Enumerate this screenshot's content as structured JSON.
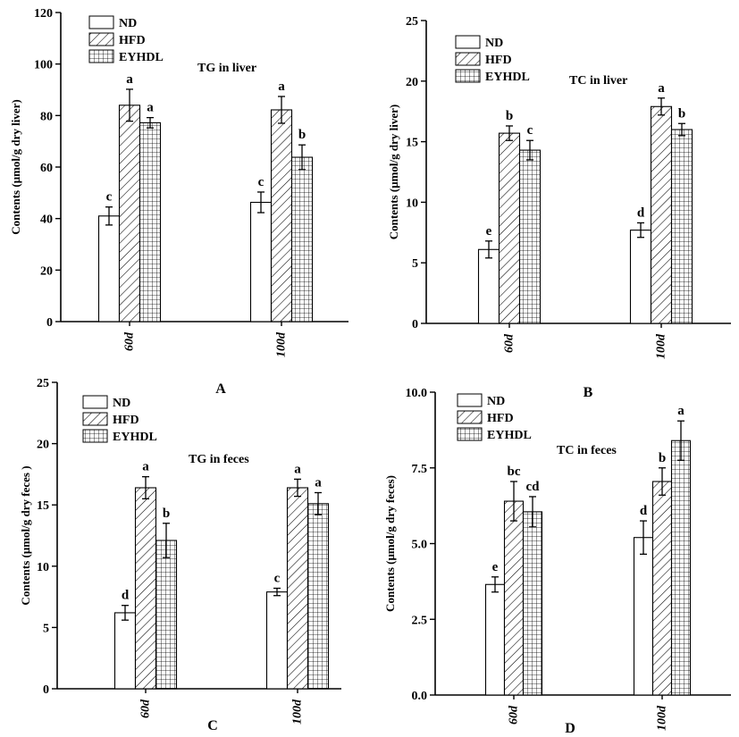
{
  "legend_labels": [
    "ND",
    "HFD",
    "EYHDL"
  ],
  "colors": {
    "axis": "#000000",
    "bar_fill": "#ffffff"
  },
  "chart_data": [
    {
      "panel": "A",
      "type": "bar",
      "title": "TG in liver",
      "xlabel": "",
      "ylabel": "Contents (μmol/g dry liver)",
      "categories": [
        "60d",
        "100d"
      ],
      "ylim": [
        0,
        120
      ],
      "yticks": [
        "0",
        "20",
        "40",
        "60",
        "80",
        "100",
        "120"
      ],
      "ytick_values": [
        0,
        20,
        40,
        60,
        80,
        100,
        120
      ],
      "grid": false,
      "legend": "top-left",
      "series": [
        {
          "name": "ND",
          "values": [
            41,
            46.3
          ],
          "errors": [
            3.5,
            4.0
          ],
          "letters": [
            "c",
            "c"
          ]
        },
        {
          "name": "HFD",
          "values": [
            84,
            82.2
          ],
          "errors": [
            6.2,
            5.2
          ],
          "letters": [
            "a",
            "a"
          ]
        },
        {
          "name": "EYHDL",
          "values": [
            77.2,
            63.8
          ],
          "errors": [
            2.0,
            4.8
          ],
          "letters": [
            "a",
            "b"
          ]
        }
      ]
    },
    {
      "panel": "B",
      "type": "bar",
      "title": "TC in liver",
      "xlabel": "",
      "ylabel": "Contents (μmol/g dry liver)",
      "categories": [
        "60d",
        "100d"
      ],
      "ylim": [
        0,
        25
      ],
      "yticks": [
        "0",
        "5",
        "10",
        "15",
        "20",
        "25"
      ],
      "ytick_values": [
        0,
        5,
        10,
        15,
        20,
        25
      ],
      "grid": false,
      "legend": "top-left",
      "series": [
        {
          "name": "ND",
          "values": [
            6.1,
            7.7
          ],
          "errors": [
            0.7,
            0.6
          ],
          "letters": [
            "e",
            "d"
          ]
        },
        {
          "name": "HFD",
          "values": [
            15.7,
            17.9
          ],
          "errors": [
            0.6,
            0.7
          ],
          "letters": [
            "b",
            "a"
          ]
        },
        {
          "name": "EYHDL",
          "values": [
            14.3,
            16
          ],
          "errors": [
            0.8,
            0.5
          ],
          "letters": [
            "c",
            "b"
          ]
        }
      ]
    },
    {
      "panel": "C",
      "type": "bar",
      "title": "TG in feces",
      "xlabel": "",
      "ylabel": "Contents (μmol/g dry feces )",
      "categories": [
        "60d",
        "100d"
      ],
      "ylim": [
        0,
        25
      ],
      "yticks": [
        "0",
        "5",
        "10",
        "15",
        "20",
        "25"
      ],
      "ytick_values": [
        0,
        5,
        10,
        15,
        20,
        25
      ],
      "grid": false,
      "legend": "top-left",
      "series": [
        {
          "name": "ND",
          "values": [
            6.2,
            7.9
          ],
          "errors": [
            0.6,
            0.3
          ],
          "letters": [
            "d",
            "c"
          ]
        },
        {
          "name": "HFD",
          "values": [
            16.4,
            16.4
          ],
          "errors": [
            0.9,
            0.7
          ],
          "letters": [
            "a",
            "a"
          ]
        },
        {
          "name": "EYHDL",
          "values": [
            12.1,
            15.1
          ],
          "errors": [
            1.4,
            0.9
          ],
          "letters": [
            "b",
            "a"
          ]
        }
      ]
    },
    {
      "panel": "D",
      "type": "bar",
      "title": "TC in feces",
      "xlabel": "",
      "ylabel": "Contents (μmol/g dry feces)",
      "categories": [
        "60d",
        "100d"
      ],
      "ylim": [
        0,
        10
      ],
      "yticks": [
        "0.0",
        "2.5",
        "5.0",
        "7.5",
        "10.0"
      ],
      "ytick_values": [
        0,
        2.5,
        5,
        7.5,
        10
      ],
      "grid": false,
      "legend": "top-left",
      "series": [
        {
          "name": "ND",
          "values": [
            3.65,
            5.2
          ],
          "errors": [
            0.25,
            0.55
          ],
          "letters": [
            "e",
            "d"
          ]
        },
        {
          "name": "HFD",
          "values": [
            6.4,
            7.05
          ],
          "errors": [
            0.65,
            0.45
          ],
          "letters": [
            "bc",
            "b"
          ]
        },
        {
          "name": "EYHDL",
          "values": [
            6.05,
            8.4
          ],
          "errors": [
            0.5,
            0.65
          ],
          "letters": [
            "cd",
            "a"
          ]
        }
      ]
    }
  ]
}
